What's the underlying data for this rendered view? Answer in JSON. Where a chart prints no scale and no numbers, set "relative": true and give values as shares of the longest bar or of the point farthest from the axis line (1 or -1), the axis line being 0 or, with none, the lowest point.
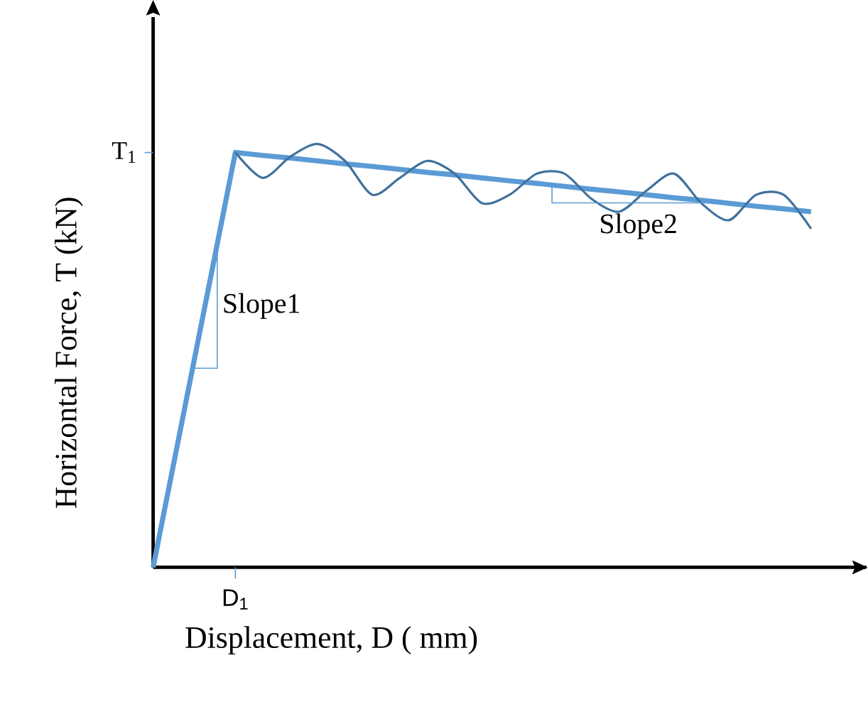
{
  "chart_data": {
    "type": "line",
    "relative": true,
    "xlabel": "Displacement, D ( mm)",
    "ylabel": "Horizontal Force, T (kN)",
    "categories": [
      null,
      null,
      null,
      null,
      null,
      null,
      null,
      null,
      null,
      null,
      null,
      null,
      null,
      null,
      null,
      null,
      null,
      null,
      null,
      null,
      null,
      null,
      null,
      null,
      null
    ],
    "series": [
      {
        "color": "#5b9bd5",
        "values": [
          0,
          0.327,
          0.653,
          0.98,
          0.973,
          0.967,
          0.96,
          0.953,
          0.947,
          0.94,
          0.933,
          0.927,
          0.92,
          0.913,
          0.907,
          0.9,
          0.893,
          0.887,
          0.88,
          0.873,
          0.867,
          0.86,
          0.853,
          0.847,
          0.84
        ]
      },
      {
        "color": "#41719c",
        "values": [
          null,
          null,
          null,
          0.98,
          0.92,
          0.97,
          1.0,
          0.96,
          0.88,
          0.92,
          0.96,
          0.93,
          0.86,
          0.88,
          0.93,
          0.93,
          0.87,
          0.84,
          0.89,
          0.93,
          0.86,
          0.82,
          0.88,
          0.88,
          0.8
        ]
      }
    ],
    "annotations": [
      "Slope1",
      "Slope2",
      "T$_{1}$",
      "D$_{1}$"
    ],
    "marker": "none",
    "line_style": "solid"
  }
}
